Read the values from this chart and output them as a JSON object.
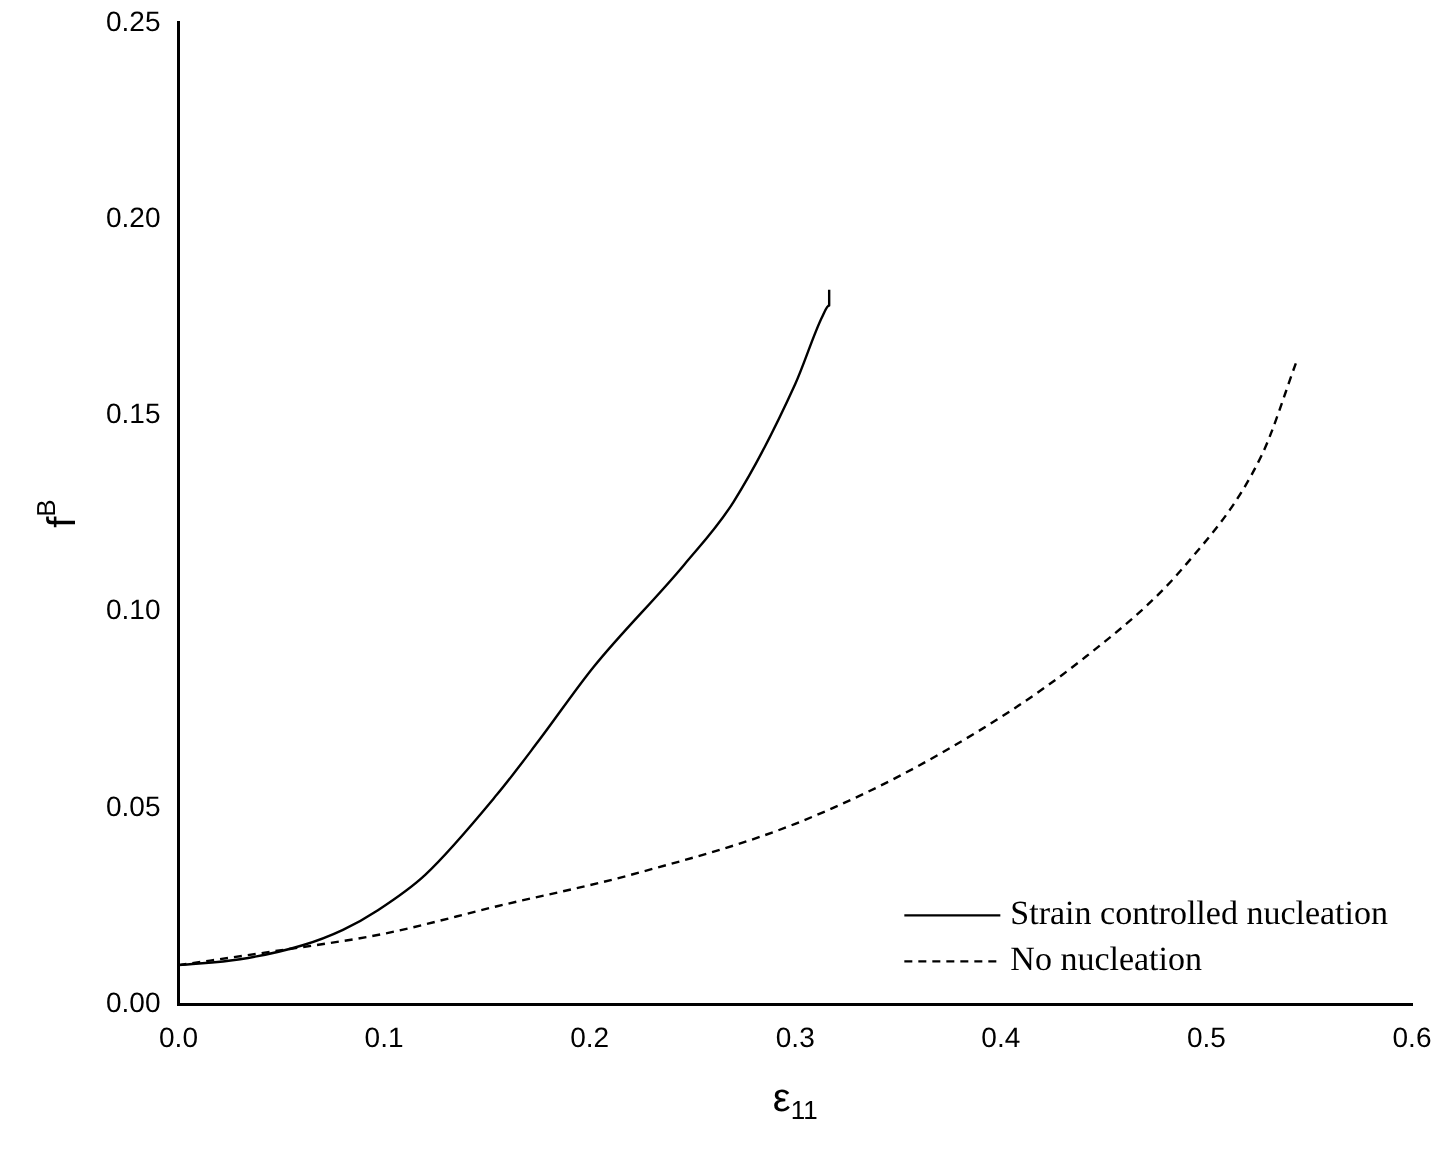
{
  "chart_data": {
    "type": "line",
    "xlabel": "ε$_{11}$",
    "ylabel": "f$^{B}$",
    "xlim": [
      0,
      0.6
    ],
    "xticks": [
      {
        "value": 0,
        "label": "0.0"
      },
      0.1,
      0.2,
      0.3,
      0.4,
      0.5,
      0.6
    ],
    "ylim": [
      0,
      0.25
    ],
    "yticks": [
      {
        "value": 0,
        "label": "0.00"
      },
      0.05,
      {
        "value": 0.1,
        "label": "0.10"
      },
      0.15,
      {
        "value": 0.2,
        "label": "0.20"
      },
      0.25
    ],
    "grid": false,
    "legend": "bottom right",
    "marker": "none",
    "series": [
      {
        "name": "Strain controlled nucleation",
        "color": "#000000",
        "line_style": "solid",
        "x": [
          0,
          0.03,
          0.06,
          0.08,
          0.097,
          0.12,
          0.155,
          0.175,
          0.202,
          0.246,
          0.27,
          0.3,
          0.313,
          0.3165,
          0.3165
        ],
        "values": [
          0.01,
          0.0115,
          0.015,
          0.019,
          0.024,
          0.033,
          0.0535,
          0.067,
          0.086,
          0.112,
          0.128,
          0.158,
          0.175,
          0.178,
          0.182
        ]
      },
      {
        "name": "No nucleation",
        "color": "#000000",
        "line_style": "dashed",
        "x": [
          0,
          0.046,
          0.1,
          0.155,
          0.22,
          0.3,
          0.371,
          0.44,
          0.49,
          0.527,
          0.544
        ],
        "values": [
          0.01,
          0.0135,
          0.018,
          0.025,
          0.033,
          0.046,
          0.064,
          0.088,
          0.112,
          0.14,
          0.164
        ]
      }
    ]
  }
}
